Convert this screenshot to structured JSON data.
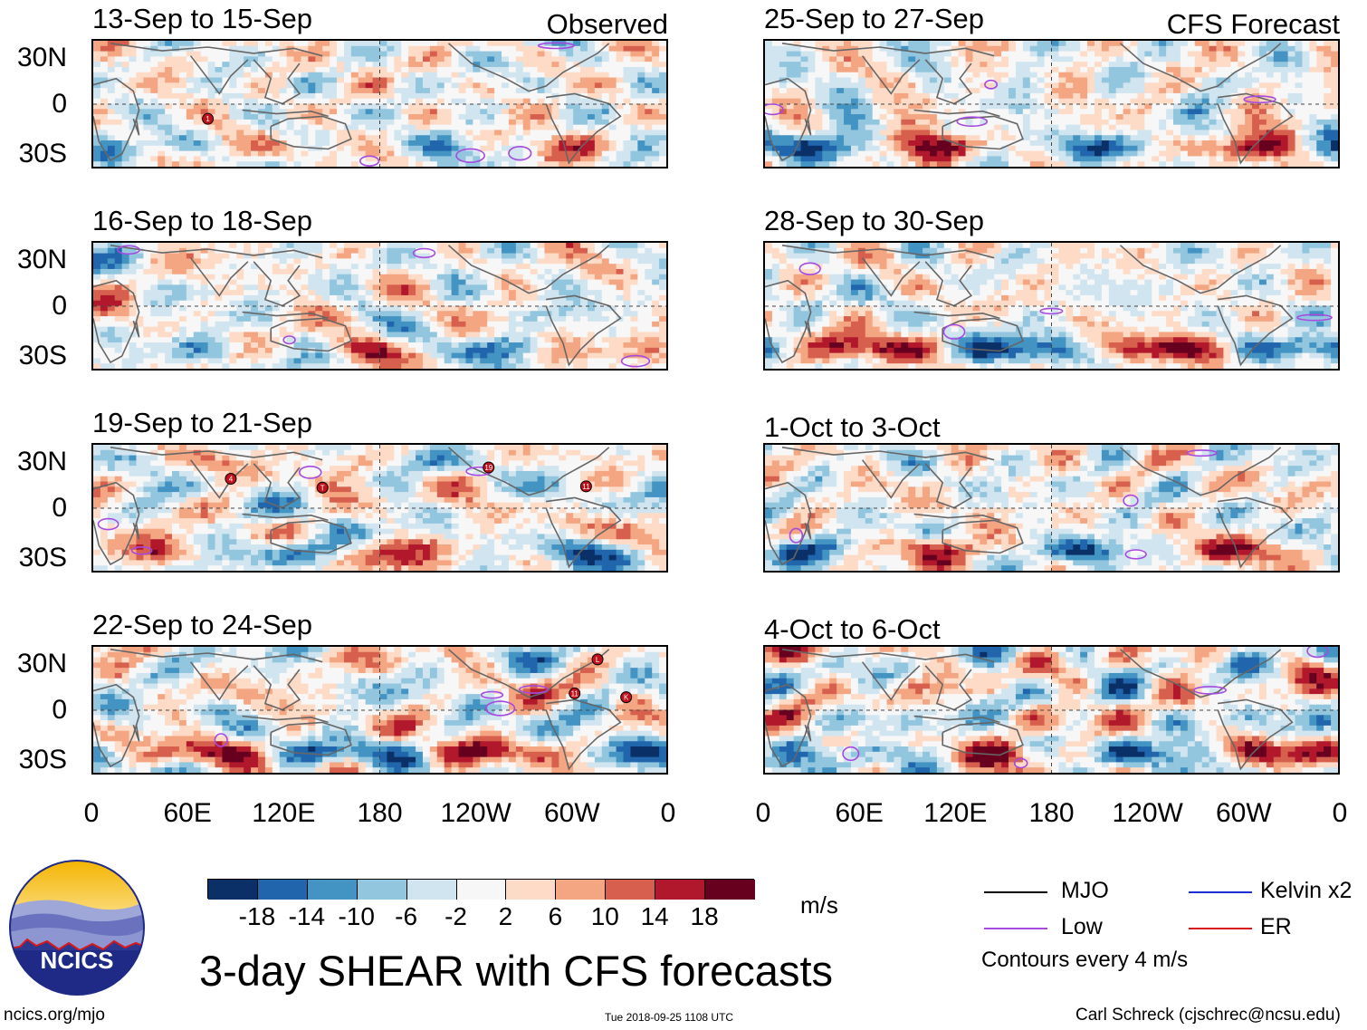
{
  "chart_data": {
    "type": "heatmap",
    "title": "3-day SHEAR with CFS forecasts",
    "units": "m/s",
    "colorbar_ticks": [
      "-18",
      "-14",
      "-10",
      "-6",
      "-2",
      "2",
      "6",
      "10",
      "14",
      "18"
    ],
    "colorbar_colors": [
      "#0b3068",
      "#2166ac",
      "#4393c3",
      "#92c5de",
      "#d1e5f0",
      "#f7f7f7",
      "#fddbc7",
      "#f4a582",
      "#d6604d",
      "#b2182b",
      "#67001f"
    ],
    "lat_ticks": [
      "30N",
      "0",
      "30S"
    ],
    "lon_ticks": [
      "0",
      "60E",
      "120E",
      "180",
      "120W",
      "60W",
      "0"
    ],
    "left_column_label": "Observed",
    "right_column_label": "CFS Forecast",
    "panels": [
      {
        "period": "13-Sep to 15-Sep",
        "column": "Observed",
        "storms": [
          "1"
        ]
      },
      {
        "period": "16-Sep to 18-Sep",
        "column": "Observed",
        "storms": []
      },
      {
        "period": "19-Sep to 21-Sep",
        "column": "Observed",
        "storms": [
          "4",
          "T",
          "19",
          "11"
        ]
      },
      {
        "period": "22-Sep to 24-Sep",
        "column": "Observed",
        "storms": [
          "L",
          "11",
          "K"
        ]
      },
      {
        "period": "25-Sep to 27-Sep",
        "column": "CFS Forecast",
        "storms": []
      },
      {
        "period": "28-Sep to 30-Sep",
        "column": "CFS Forecast",
        "storms": []
      },
      {
        "period": "1-Oct to 3-Oct",
        "column": "CFS Forecast",
        "storms": []
      },
      {
        "period": "4-Oct to 6-Oct",
        "column": "CFS Forecast",
        "storms": []
      }
    ],
    "contour_note": "Contours every 4 m/s",
    "legend": [
      {
        "label": "MJO",
        "color": "#000000"
      },
      {
        "label": "Low",
        "color": "#a64ae0"
      },
      {
        "label": "Kelvin x2",
        "color": "#1c2fd1"
      },
      {
        "label": "ER",
        "color": "#d7191c"
      }
    ]
  },
  "footer": {
    "logo_text": "NCICS",
    "url": "ncics.org/mjo",
    "timestamp": "Tue 2018-09-25 1108 UTC",
    "author": "Carl Schreck (cjschrec@ncsu.edu)"
  }
}
